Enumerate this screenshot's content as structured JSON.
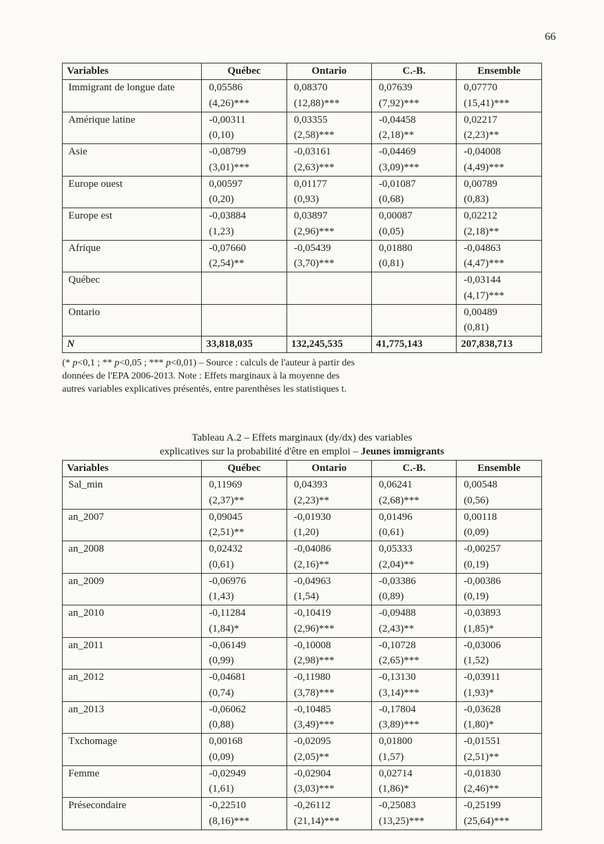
{
  "page_number": "66",
  "table1": {
    "headers": [
      "Variables",
      "Québec",
      "Ontario",
      "C.-B.",
      "Ensemble"
    ],
    "rows": [
      {
        "var": "Immigrant de longue date",
        "q": [
          "0,05586",
          "(4,26)***"
        ],
        "o": [
          "0,08370",
          "(12,88)***"
        ],
        "c": [
          "0,07639",
          "(7,92)***"
        ],
        "e": [
          "0,07770",
          "(15,41)***"
        ]
      },
      {
        "var": "Amérique latine",
        "q": [
          "-0,00311",
          "(0,10)"
        ],
        "o": [
          "0,03355",
          "(2,58)***"
        ],
        "c": [
          "-0,04458",
          "(2,18)**"
        ],
        "e": [
          "0,02217",
          "(2,23)**"
        ]
      },
      {
        "var": "Asie",
        "q": [
          "-0,08799",
          "(3,01)***"
        ],
        "o": [
          "-0,03161",
          "(2,63)***"
        ],
        "c": [
          "-0,04469",
          "(3,09)***"
        ],
        "e": [
          "-0,04008",
          "(4,49)***"
        ]
      },
      {
        "var": "Europe ouest",
        "q": [
          "0,00597",
          "(0,20)"
        ],
        "o": [
          "0,01177",
          "(0,93)"
        ],
        "c": [
          "-0,01087",
          "(0,68)"
        ],
        "e": [
          "0,00789",
          "(0,83)"
        ]
      },
      {
        "var": "Europe est",
        "q": [
          "-0,03884",
          "(1,23)"
        ],
        "o": [
          "0,03897",
          "(2,96)***"
        ],
        "c": [
          "0,00087",
          "(0,05)"
        ],
        "e": [
          "0,02212",
          "(2,18)**"
        ]
      },
      {
        "var": "Afrique",
        "q": [
          "-0,07660",
          "(2,54)**"
        ],
        "o": [
          "-0,05439",
          "(3,70)***"
        ],
        "c": [
          "0,01880",
          "(0,81)"
        ],
        "e": [
          "-0,04863",
          "(4,47)***"
        ]
      },
      {
        "var": "Québec",
        "q": [
          "",
          ""
        ],
        "o": [
          "",
          ""
        ],
        "c": [
          "",
          ""
        ],
        "e": [
          "-0,03144",
          "(4,17)***"
        ]
      },
      {
        "var": "Ontario",
        "q": [
          "",
          ""
        ],
        "o": [
          "",
          ""
        ],
        "c": [
          "",
          ""
        ],
        "e": [
          "0,00489",
          "(0,81)"
        ]
      }
    ],
    "nrow": {
      "var": "N",
      "q": "33,818,035",
      "o": "132,245,535",
      "c": "41,775,143",
      "e": "207,838,713"
    }
  },
  "note": {
    "line1a": "(* ",
    "line1b": "p",
    "line1c": "<0,1 ; ** ",
    "line1d": "p",
    "line1e": "<0,05 ; *** ",
    "line1f": "p",
    "line1g": "<0,01) – Source : calculs de l'auteur à partir des",
    "line2": "données de l'EPA 2006-2013. Note : Effets marginaux à la moyenne des",
    "line3": "autres variables explicatives présentés, entre parenthèses les statistiques t."
  },
  "caption": {
    "line1": "Tableau A.2 – Effets marginaux (dy/dx) des variables",
    "line2a": "explicatives sur la probabilité d'être en emploi – ",
    "line2b": "Jeunes immigrants"
  },
  "table2": {
    "headers": [
      "Variables",
      "Québec",
      "Ontario",
      "C.-B.",
      "Ensemble"
    ],
    "rows": [
      {
        "var": "Sal_min",
        "q": [
          "0,11969",
          "(2,37)**"
        ],
        "o": [
          "0,04393",
          "(2,23)**"
        ],
        "c": [
          "0,06241",
          "(2,68)***"
        ],
        "e": [
          "0,00548",
          "(0,56)"
        ]
      },
      {
        "var": "an_2007",
        "q": [
          "0,09045",
          "(2,51)**"
        ],
        "o": [
          "-0,01930",
          "(1,20)"
        ],
        "c": [
          "0,01496",
          "(0,61)"
        ],
        "e": [
          "0,00118",
          "(0,09)"
        ]
      },
      {
        "var": "an_2008",
        "q": [
          "0,02432",
          "(0,61)"
        ],
        "o": [
          "-0,04086",
          "(2,16)**"
        ],
        "c": [
          "0,05333",
          "(2,04)**"
        ],
        "e": [
          "-0,00257",
          "(0,19)"
        ]
      },
      {
        "var": "an_2009",
        "q": [
          "-0,06976",
          "(1,43)"
        ],
        "o": [
          "-0,04963",
          "(1,54)"
        ],
        "c": [
          "-0,03386",
          "(0,89)"
        ],
        "e": [
          "-0,00386",
          "(0,19)"
        ]
      },
      {
        "var": "an_2010",
        "q": [
          "-0,11284",
          "(1,84)*"
        ],
        "o": [
          "-0,10419",
          "(2,96)***"
        ],
        "c": [
          "-0,09488",
          "(2,43)**"
        ],
        "e": [
          "-0,03893",
          "(1,85)*"
        ]
      },
      {
        "var": "an_2011",
        "q": [
          "-0,06149",
          "(0,99)"
        ],
        "o": [
          "-0,10008",
          "(2,98)***"
        ],
        "c": [
          "-0,10728",
          "(2,65)***"
        ],
        "e": [
          "-0,03006",
          "(1,52)"
        ]
      },
      {
        "var": "an_2012",
        "q": [
          "-0,04681",
          "(0,74)"
        ],
        "o": [
          "-0,11980",
          "(3,78)***"
        ],
        "c": [
          "-0,13130",
          "(3,14)***"
        ],
        "e": [
          "-0,03911",
          "(1,93)*"
        ]
      },
      {
        "var": "an_2013",
        "q": [
          "-0,06062",
          "(0,88)"
        ],
        "o": [
          "-0,10485",
          "(3,49)***"
        ],
        "c": [
          "-0,17804",
          "(3,89)***"
        ],
        "e": [
          "-0,03628",
          "(1,80)*"
        ]
      },
      {
        "var": "Txchomage",
        "q": [
          "0,00168",
          "(0,09)"
        ],
        "o": [
          "-0,02095",
          "(2,05)**"
        ],
        "c": [
          "0,01800",
          "(1,57)"
        ],
        "e": [
          "-0,01551",
          "(2,51)**"
        ]
      },
      {
        "var": "Femme",
        "q": [
          "-0,02949",
          "(1,61)"
        ],
        "o": [
          "-0,02904",
          "(3,03)***"
        ],
        "c": [
          "0,02714",
          "(1,86)*"
        ],
        "e": [
          "-0,01830",
          "(2,46)**"
        ]
      },
      {
        "var": "Présecondaire",
        "q": [
          "-0,22510",
          "(8,16)***"
        ],
        "o": [
          "-0,26112",
          "(21,14)***"
        ],
        "c": [
          "-0,25083",
          "(13,25)***"
        ],
        "e": [
          "-0,25199",
          "(25,64)***"
        ]
      }
    ]
  }
}
